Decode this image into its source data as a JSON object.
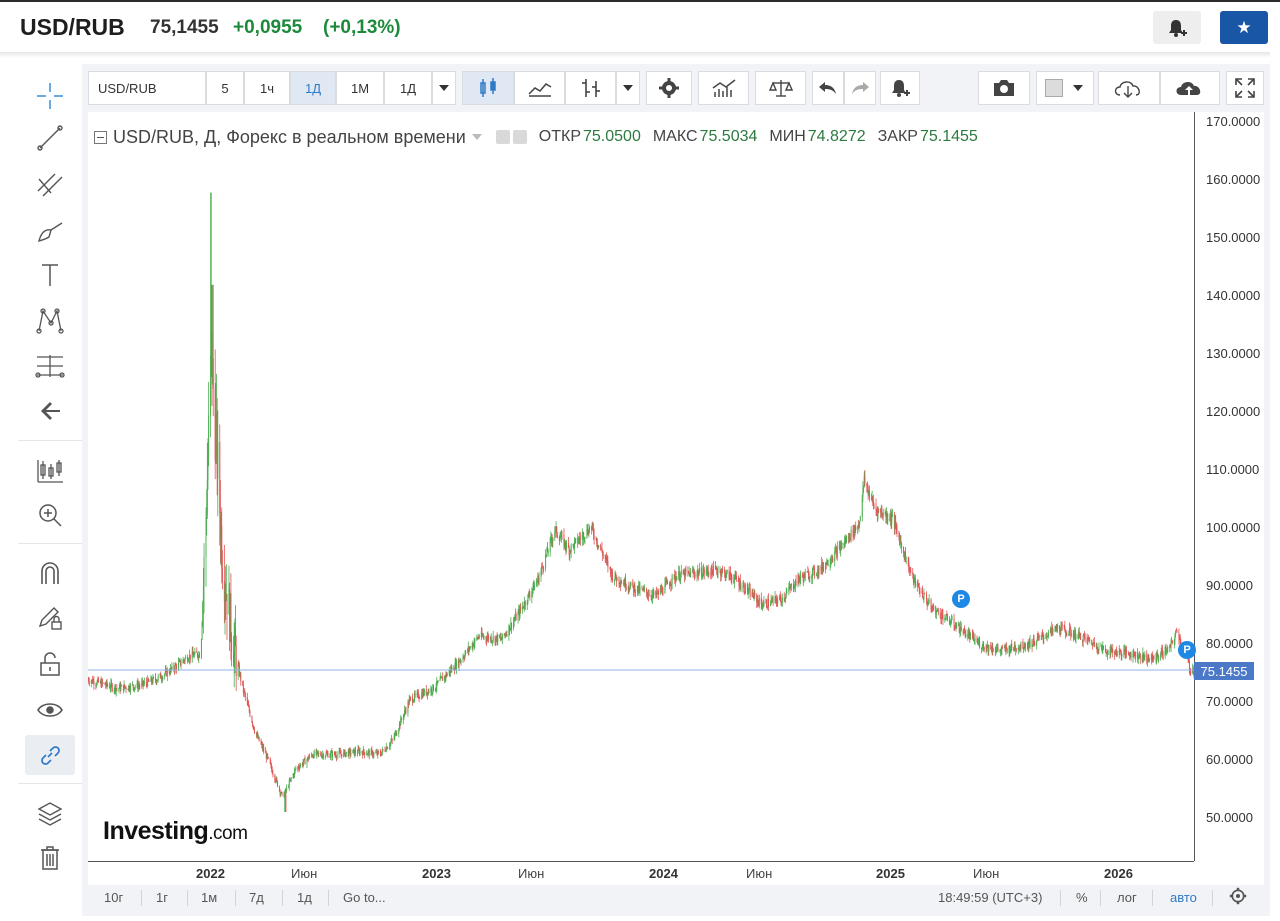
{
  "header": {
    "symbol": "USD/RUB",
    "price": "75,1455",
    "change": "+0,0955",
    "change_pct": "(+0,13%)",
    "star_glyph": "★"
  },
  "toolbar": {
    "symbol": "USD/RUB",
    "intervals": [
      "5",
      "1ч",
      "1Д",
      "1М",
      "1Д"
    ]
  },
  "legend": {
    "title": "USD/RUB, Д, Форекс в реальном времени",
    "open_label": "ОТКР",
    "open": "75.0500",
    "high_label": "МАКС",
    "high": "75.5034",
    "low_label": "МИН",
    "low": "74.8272",
    "close_label": "ЗАКР",
    "close": "75.1455"
  },
  "price_axis": {
    "ticks": [
      "170.0000",
      "160.0000",
      "150.0000",
      "140.0000",
      "130.0000",
      "120.0000",
      "110.0000",
      "100.0000",
      "90.0000",
      "80.0000",
      "70.0000",
      "60.0000",
      "50.0000"
    ],
    "current_price": "75.1455"
  },
  "time_axis": {
    "ticks": [
      "2022",
      "Июн",
      "2023",
      "Июн",
      "2024",
      "Июн",
      "2025",
      "Июн",
      "2026"
    ]
  },
  "markers": [
    "P",
    "P"
  ],
  "bottom_bar": {
    "ranges": [
      "10г",
      "1г",
      "1м",
      "7д",
      "1д"
    ],
    "goto": "Go to...",
    "time": "18:49:59 (UTC+3)",
    "percent": "%",
    "log": "лог",
    "auto": "авто"
  },
  "logo": {
    "main": "Investing",
    "suffix": ".com"
  },
  "colors": {
    "up": "#4caf50",
    "down": "#e05555",
    "positive_text": "#1d8a3b",
    "accent": "#1a56a6",
    "price_tag": "#4c78c8"
  },
  "chart_data": {
    "type": "candlestick",
    "title": "USD/RUB, Д, Форекс в реальном времени",
    "ylim": [
      42,
      172
    ],
    "x_start": "2021-09-01",
    "x_end": "2026-04-15",
    "series": [
      [
        "2021-09-01",
        73.5
      ],
      [
        "2021-10-15",
        72.0
      ],
      [
        "2021-11-20",
        72.5
      ],
      [
        "2021-12-15",
        73.6
      ],
      [
        "2022-01-10",
        75.5
      ],
      [
        "2022-02-01",
        77.5
      ],
      [
        "2022-02-20",
        78.0
      ],
      [
        "2022-03-01",
        105.0
      ],
      [
        "2022-03-08",
        130.0
      ],
      [
        "2022-03-15",
        116.0
      ],
      [
        "2022-03-25",
        95.0
      ],
      [
        "2022-04-10",
        80.0
      ],
      [
        "2022-04-25",
        72.0
      ],
      [
        "2022-05-15",
        64.0
      ],
      [
        "2022-06-01",
        60.0
      ],
      [
        "2022-06-25",
        53.0
      ],
      [
        "2022-07-15",
        58.0
      ],
      [
        "2022-08-10",
        60.5
      ],
      [
        "2022-09-15",
        60.5
      ],
      [
        "2022-10-20",
        61.0
      ],
      [
        "2022-11-20",
        60.5
      ],
      [
        "2022-12-10",
        63.0
      ],
      [
        "2023-01-05",
        70.0
      ],
      [
        "2023-02-10",
        72.0
      ],
      [
        "2023-03-20",
        76.5
      ],
      [
        "2023-04-20",
        81.0
      ],
      [
        "2023-05-25",
        80.5
      ],
      [
        "2023-06-20",
        85.0
      ],
      [
        "2023-07-20",
        91.0
      ],
      [
        "2023-08-14",
        99.5
      ],
      [
        "2023-09-05",
        96.0
      ],
      [
        "2023-10-08",
        100.0
      ],
      [
        "2023-11-10",
        91.5
      ],
      [
        "2023-12-10",
        89.5
      ],
      [
        "2024-01-15",
        88.0
      ],
      [
        "2024-02-15",
        91.5
      ],
      [
        "2024-03-15",
        92.0
      ],
      [
        "2024-04-20",
        92.5
      ],
      [
        "2024-05-15",
        91.0
      ],
      [
        "2024-06-25",
        86.5
      ],
      [
        "2024-07-25",
        87.5
      ],
      [
        "2024-08-20",
        91.0
      ],
      [
        "2024-09-20",
        92.5
      ],
      [
        "2024-10-20",
        96.0
      ],
      [
        "2024-11-20",
        100.5
      ],
      [
        "2024-11-28",
        108.0
      ],
      [
        "2024-12-15",
        103.0
      ],
      [
        "2025-01-10",
        101.5
      ],
      [
        "2025-02-10",
        91.0
      ],
      [
        "2025-03-10",
        86.0
      ],
      [
        "2025-04-15",
        83.0
      ],
      [
        "2025-05-25",
        79.5
      ],
      [
        "2025-06-25",
        78.5
      ],
      [
        "2025-08-10",
        79.8
      ],
      [
        "2025-09-20",
        82.5
      ],
      [
        "2025-11-01",
        80.5
      ],
      [
        "2025-12-01",
        78.5
      ],
      [
        "2026-01-10",
        78.0
      ],
      [
        "2026-02-10",
        77.0
      ],
      [
        "2026-03-10",
        79.0
      ],
      [
        "2026-03-20",
        82.0
      ],
      [
        "2026-04-10",
        75.1
      ]
    ]
  }
}
